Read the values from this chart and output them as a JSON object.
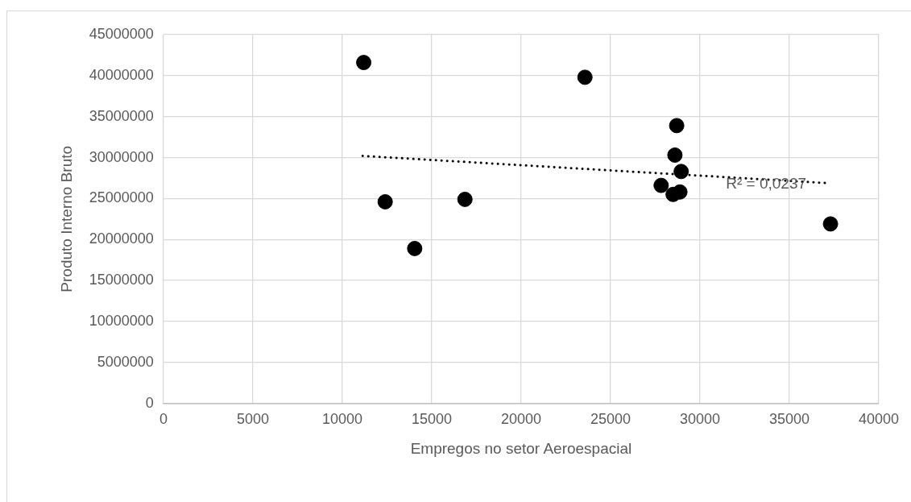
{
  "chart_data": {
    "type": "scatter",
    "xlabel": "Empregos no setor Aeroespacial",
    "ylabel": "Produto Interno Bruto",
    "xlim": [
      0,
      40000
    ],
    "xticks": [
      0,
      5000,
      10000,
      15000,
      20000,
      25000,
      30000,
      35000,
      40000
    ],
    "ylim": [
      0,
      45000000
    ],
    "yticks": [
      0,
      5000000,
      10000000,
      15000000,
      20000000,
      25000000,
      30000000,
      35000000,
      40000000,
      45000000
    ],
    "grid": true,
    "legend": false,
    "series": [
      {
        "color": "#000000",
        "marker": "circle",
        "x": [
          11200,
          12400,
          14050,
          16860,
          23570,
          28700,
          28600,
          28950,
          27830,
          28500,
          28880,
          37300
        ],
        "values": [
          41600000,
          24600000,
          18900000,
          24900000,
          39800000,
          33900000,
          30300000,
          28300000,
          26600000,
          25500000,
          25800000,
          21900000
        ]
      },
      {
        "type": "line",
        "color": "#000000",
        "marker": "none",
        "line_style": "dotted",
        "x": [
          11140,
          36990
        ],
        "values": [
          30200000,
          26900000
        ]
      }
    ],
    "annotations": [
      {
        "text": "R² = 0,0237",
        "x": 33700,
        "y": 26700000
      }
    ]
  }
}
